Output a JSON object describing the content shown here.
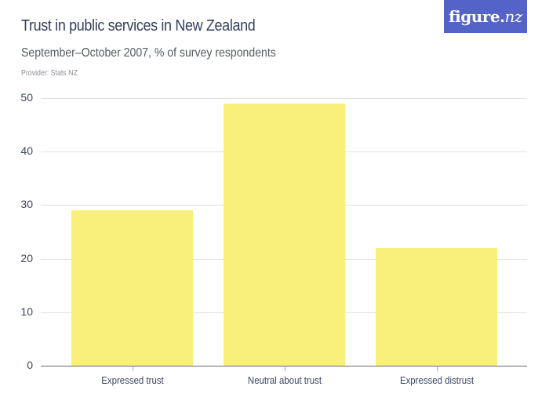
{
  "header": {
    "title": "Trust in public services in New Zealand",
    "subtitle": "September–October 2007, % of survey respondents",
    "provider": "Provider: Stats NZ",
    "logo_main": "figure.",
    "logo_suffix": "nz"
  },
  "colors": {
    "bar": "#f8f07a",
    "logo_bg": "#5463c7",
    "title": "#34405e"
  },
  "chart_data": {
    "type": "bar",
    "title": "Trust in public services in New Zealand",
    "subtitle": "September–October 2007, % of survey respondents",
    "categories": [
      "Expressed trust",
      "Neutral about trust",
      "Expressed distrust"
    ],
    "values": [
      29,
      49,
      22
    ],
    "xlabel": "",
    "ylabel": "% of survey respondents",
    "ylim": [
      0,
      50
    ],
    "yticks": [
      0,
      10,
      20,
      30,
      40,
      50
    ],
    "grid": true,
    "legend": "none"
  },
  "axis": {
    "yticks": [
      "0",
      "10",
      "20",
      "30",
      "40",
      "50"
    ]
  }
}
